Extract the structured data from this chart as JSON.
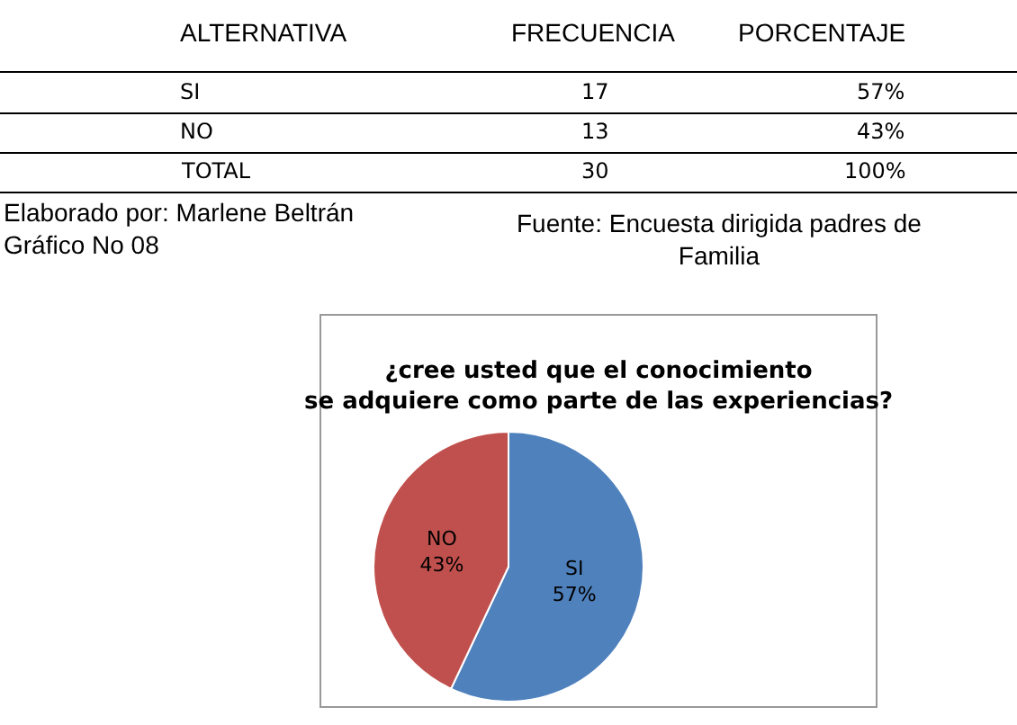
{
  "chart_data": [
    {
      "type": "other",
      "annotations": [
        "ALTERNATIVA",
        "FRECUENCIA",
        "PORCENTAJE",
        "SI",
        "17",
        "57%",
        "NO",
        "13",
        "43%",
        "TOTAL",
        "30",
        "100%",
        "Elaborado por: Marlene Beltrán",
        "Fuente: Encuesta dirigida padres de Familia",
        "Gráfico No 08"
      ]
    },
    {
      "type": "pie",
      "title": "¿cree usted que el conocimiento se adquiere como parte de las experiencias?",
      "categories": [
        "SI",
        "NO"
      ],
      "values": [
        57,
        43
      ],
      "colors": [
        "#4f81bd",
        "#c0504d"
      ],
      "value_labels": [
        "57%",
        "43%"
      ]
    }
  ]
}
